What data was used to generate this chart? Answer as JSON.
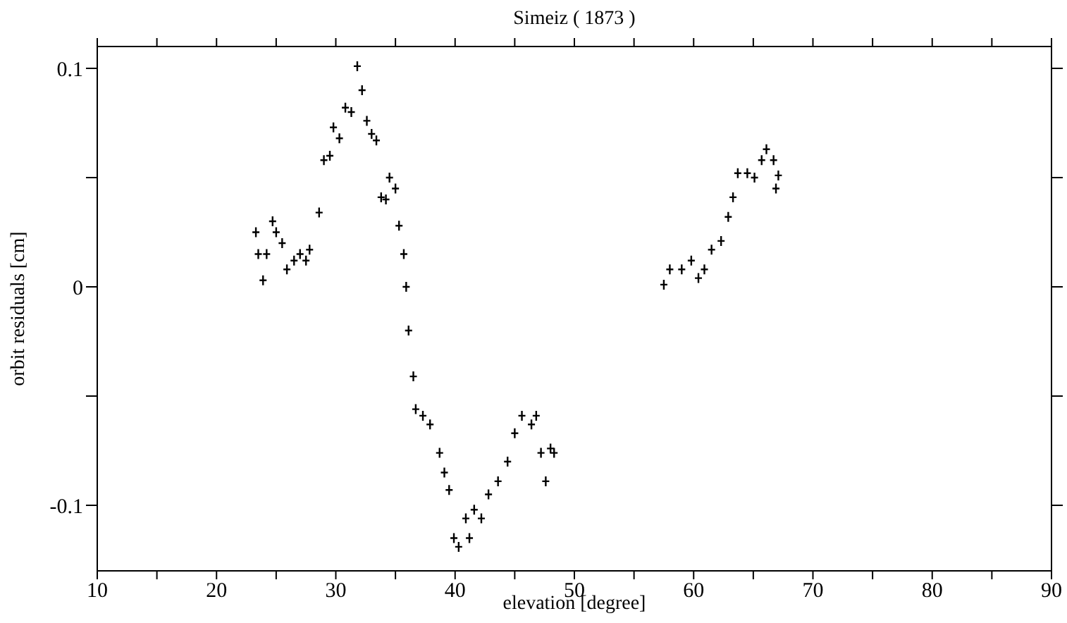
{
  "chart_data": {
    "type": "scatter",
    "title": "Simeiz ( 1873 )",
    "xlabel": "elevation [degree]",
    "ylabel": "orbit residuals [cm]",
    "xlim": [
      10,
      90
    ],
    "ylim": [
      -0.13,
      0.11
    ],
    "xticks": [
      10,
      {
        "value": 15,
        "label": null
      },
      20,
      {
        "value": 25,
        "label": null
      },
      30,
      {
        "value": 35,
        "label": null
      },
      40,
      {
        "value": 45,
        "label": null
      },
      50,
      {
        "value": 55,
        "label": null
      },
      60,
      {
        "value": 65,
        "label": null
      },
      70,
      {
        "value": 75,
        "label": null
      },
      80,
      {
        "value": 85,
        "label": null
      },
      90
    ],
    "yticks": [
      -0.1,
      {
        "value": -0.05,
        "label": null
      },
      0,
      {
        "value": 0.05,
        "label": null
      },
      0.1
    ],
    "marker": "cross",
    "series": [
      {
        "color": "#000000",
        "x": [
          23.3,
          23.5,
          23.9,
          24.2,
          24.7,
          25.0,
          25.5,
          25.9,
          26.5,
          27.0,
          27.5,
          27.8,
          28.6,
          29.0,
          29.5,
          29.8,
          30.3,
          30.8,
          31.3,
          31.8,
          32.2,
          32.6,
          33.0,
          33.4,
          33.8,
          34.2,
          34.5,
          35.0,
          35.3,
          35.7,
          35.9,
          36.1,
          36.5,
          36.7,
          37.3,
          37.9,
          38.7,
          39.1,
          39.5,
          39.9,
          40.3,
          40.9,
          41.2,
          41.6,
          42.2,
          42.8,
          43.6,
          44.4,
          45.0,
          45.6,
          46.4,
          46.8,
          47.2,
          47.6,
          48.0,
          48.3,
          57.5,
          58.0,
          59.0,
          59.8,
          60.4,
          60.9,
          61.5,
          62.3,
          62.9,
          63.3,
          63.7,
          64.5,
          65.1,
          65.7,
          66.1,
          66.7,
          66.9,
          67.1
        ],
        "values": [
          0.025,
          0.015,
          0.003,
          0.015,
          0.03,
          0.025,
          0.02,
          0.008,
          0.012,
          0.015,
          0.012,
          0.017,
          0.034,
          0.058,
          0.06,
          0.073,
          0.068,
          0.082,
          0.08,
          0.101,
          0.09,
          0.076,
          0.07,
          0.067,
          0.041,
          0.04,
          0.05,
          0.045,
          0.028,
          0.015,
          0.0,
          -0.02,
          -0.041,
          -0.056,
          -0.059,
          -0.063,
          -0.076,
          -0.085,
          -0.093,
          -0.115,
          -0.119,
          -0.106,
          -0.115,
          -0.102,
          -0.106,
          -0.095,
          -0.089,
          -0.08,
          -0.067,
          -0.059,
          -0.063,
          -0.059,
          -0.076,
          -0.089,
          -0.074,
          -0.076,
          0.001,
          0.008,
          0.008,
          0.012,
          0.004,
          0.008,
          0.017,
          0.021,
          0.032,
          0.041,
          0.052,
          0.052,
          0.05,
          0.058,
          0.063,
          0.058,
          0.045,
          0.051
        ]
      }
    ]
  }
}
